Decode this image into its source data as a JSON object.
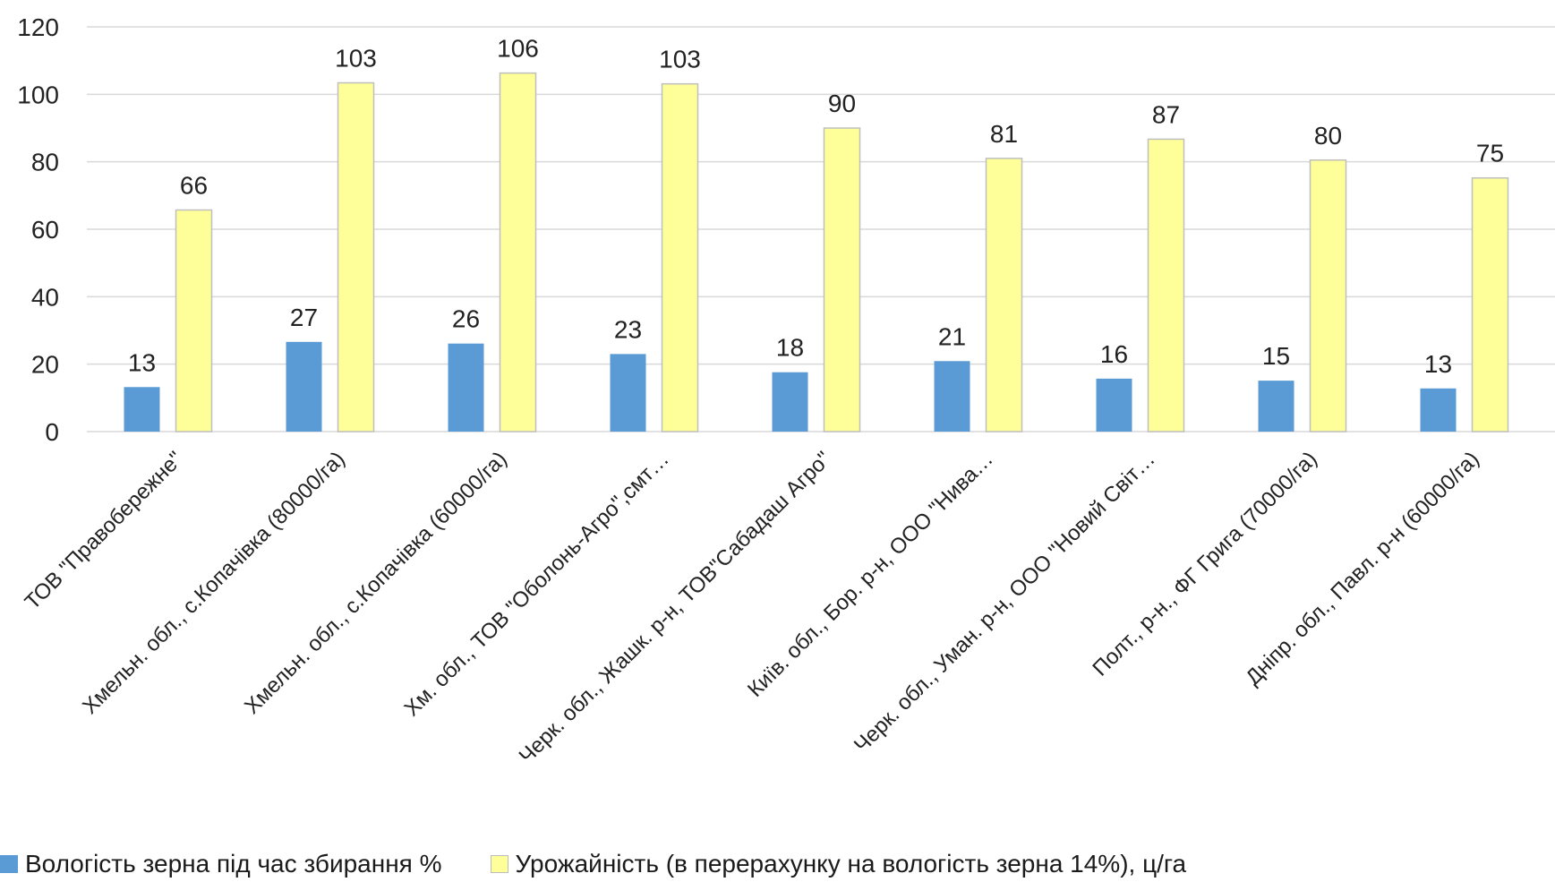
{
  "chart_data": {
    "type": "bar",
    "categories": [
      "ТОВ \"Правобережне\"",
      "Хмельн. обл., с.Копачівка (80000/га)",
      "Хмельн. обл., с.Копачівка (60000/га)",
      "Хм. обл., ТОВ \"Оболонь-Агро\",смт…",
      "Черк. обл., Жашк. р-н, ТОВ\"Сабадаш Агро\"",
      "Київ. обл., Бор. р-н, ООО \"Нива…",
      "Черк. обл., Уман. р-н, ООО \"Новий Світ…",
      "Полт., р-н., ФГ Грига (70000/га)",
      "Дніпр. обл., Павл. р-н (60000/га)"
    ],
    "series": [
      {
        "name": "Вологість зерна під час збирання %",
        "color": "#5b9bd5",
        "values": [
          13.2,
          26.6,
          26.1,
          23.0,
          17.6,
          20.9,
          15.7,
          15.1,
          12.8
        ],
        "labels": [
          "13",
          "27",
          "26",
          "23",
          "18",
          "21",
          "16",
          "15",
          "13"
        ]
      },
      {
        "name": "Урожайність  (в перерахунку на вологість зерна 14%), ц/га",
        "color": "#ffff99",
        "values": [
          65.7,
          103.4,
          106.3,
          103.1,
          90.0,
          81.0,
          86.7,
          80.5,
          75.2
        ],
        "labels": [
          "66",
          "103",
          "106",
          "103",
          "90",
          "81",
          "87",
          "80",
          "75"
        ]
      }
    ],
    "yticks": [
      "0",
      "20",
      "40",
      "60",
      "80",
      "100",
      "120"
    ],
    "ylim": [
      0,
      120
    ],
    "grid": true,
    "legend_position": "bottom"
  }
}
